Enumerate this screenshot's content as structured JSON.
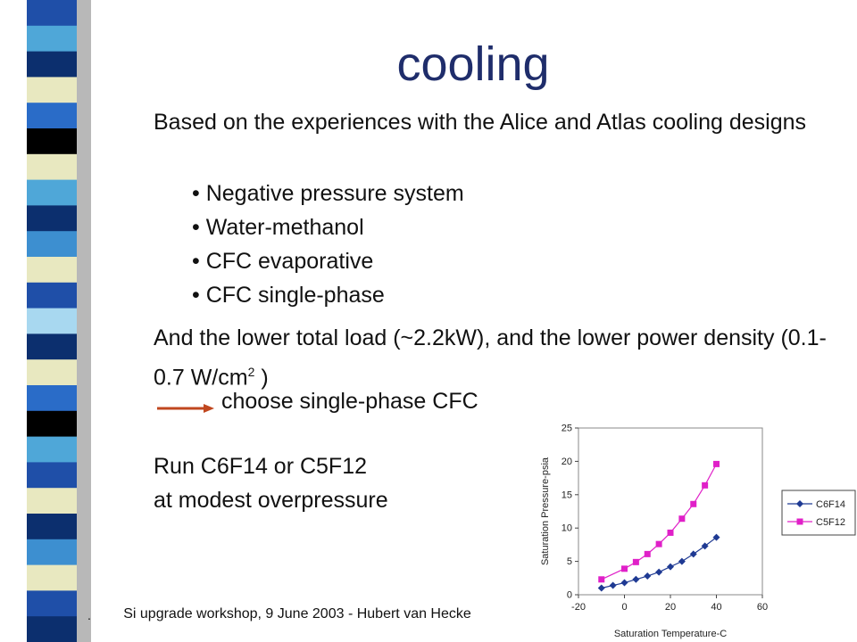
{
  "slide": {
    "title": "cooling",
    "intro": "Based on the experiences with the Alice and Atlas cooling designs",
    "bullets": [
      "Negative pressure system",
      "Water-methanol",
      "CFC evaporative",
      "CFC single-phase"
    ],
    "load_text": "And the lower total load (~2.2kW), and the lower power density (0.1-0.7 W/cm",
    "load_sup": "2",
    "load_end": " )",
    "choose": "choose single-phase CFC",
    "run_line1": "Run C6F14 or C5F12",
    "run_line2": "at modest overpressure",
    "footer_dot": ".",
    "footer": "Si upgrade workshop, 9 June 2003 - Hubert van Hecke"
  },
  "colors": {
    "title": "#1f2d6b",
    "arrow": "#c0471f",
    "c6f14": "#1f3a93",
    "c5f12": "#e020c8"
  },
  "sidebar_colors": [
    "#1f4fa8",
    "#4fa7d8",
    "#0c2f6e",
    "#e8e8c0",
    "#2a6cc8",
    "#000000",
    "#e8e8c0",
    "#4fa7d8",
    "#0c2f6e",
    "#3d8fd0",
    "#e8e8c0",
    "#1f4fa8",
    "#a8d8f0",
    "#0c2f6e",
    "#e8e8c0",
    "#2a6cc8",
    "#000000",
    "#4fa7d8",
    "#1f4fa8",
    "#e8e8c0",
    "#0c2f6e",
    "#3d8fd0",
    "#e8e8c0",
    "#1f4fa8",
    "#0c2f6e"
  ],
  "chart_data": {
    "type": "line",
    "xlabel": "Saturation Temperature-C",
    "ylabel": "Saturation Pressure-psia",
    "xlim": [
      -20,
      60
    ],
    "ylim": [
      0,
      25
    ],
    "xticks": [
      -20,
      0,
      20,
      40,
      60
    ],
    "yticks": [
      0,
      5,
      10,
      15,
      20,
      25
    ],
    "legend_position": "right",
    "series": [
      {
        "name": "C6F14",
        "marker": "diamond",
        "color": "#1f3a93",
        "x": [
          -10,
          -5,
          0,
          5,
          10,
          15,
          20,
          25,
          30,
          35,
          40
        ],
        "y": [
          1.0,
          1.4,
          1.8,
          2.3,
          2.8,
          3.4,
          4.2,
          5.0,
          6.1,
          7.3,
          8.6
        ]
      },
      {
        "name": "C5F12",
        "marker": "square",
        "color": "#e020c8",
        "x": [
          -10,
          0,
          5,
          10,
          15,
          20,
          25,
          30,
          35,
          40
        ],
        "y": [
          2.3,
          3.9,
          4.9,
          6.1,
          7.6,
          9.3,
          11.4,
          13.6,
          16.4,
          19.6
        ]
      }
    ]
  }
}
